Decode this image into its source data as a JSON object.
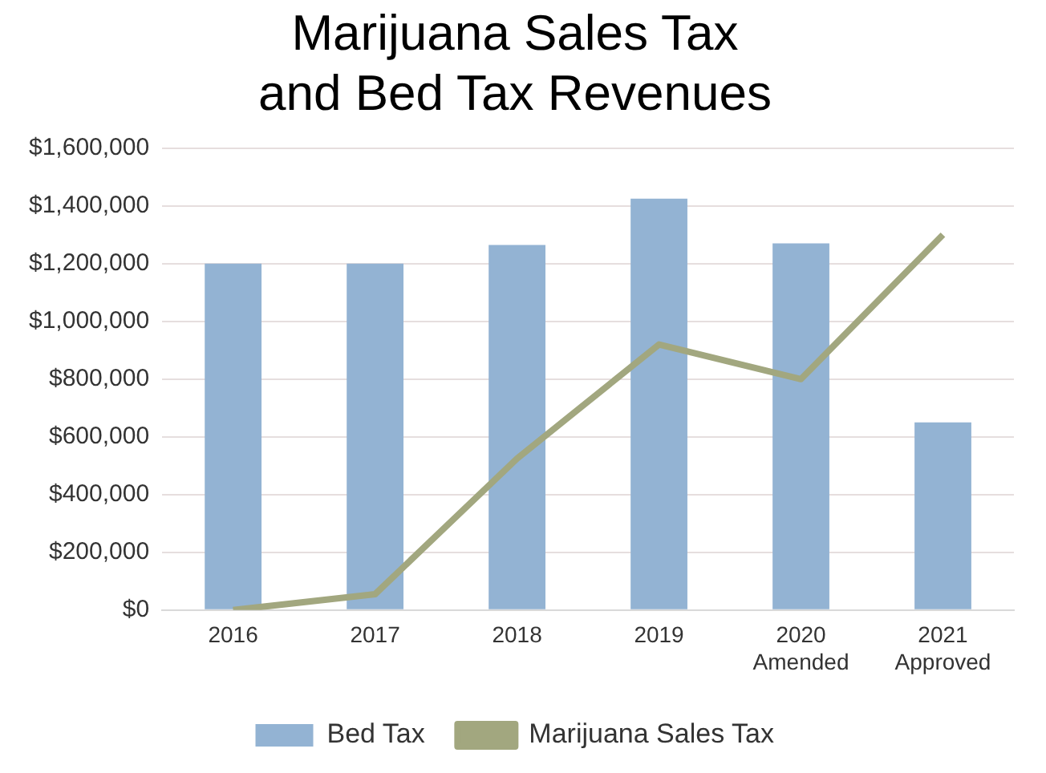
{
  "chart_data": {
    "type": "bar",
    "title": "Marijuana Sales Tax and Bed Tax Revenues",
    "categories": [
      "2016",
      "2017",
      "2018",
      "2019",
      "2020 Amended",
      "2021 Approved"
    ],
    "series": [
      {
        "name": "Bed Tax",
        "color": "#93b3d3",
        "values": [
          1200000,
          1200000,
          1265000,
          1425000,
          1270000,
          650000
        ]
      },
      {
        "name": "Marijuana Sales Tax",
        "type": "line",
        "color": "#a2a77f",
        "values": [
          0,
          55000,
          525000,
          920000,
          800000,
          1300000
        ]
      }
    ],
    "ylim": [
      0,
      1600000
    ],
    "yticks": [
      {
        "value": 0,
        "label": "$0"
      },
      {
        "value": 200000,
        "label": "$200,000"
      },
      {
        "value": 400000,
        "label": "$400,000"
      },
      {
        "value": 600000,
        "label": "$600,000"
      },
      {
        "value": 800000,
        "label": "$800,000"
      },
      {
        "value": 1000000,
        "label": "$1,000,000"
      },
      {
        "value": 1200000,
        "label": "$1,200,000"
      },
      {
        "value": 1400000,
        "label": "$1,400,000"
      },
      {
        "value": 1600000,
        "label": "$1,600,000"
      }
    ],
    "grid": "y",
    "legend": "bottom",
    "marker": "none"
  }
}
